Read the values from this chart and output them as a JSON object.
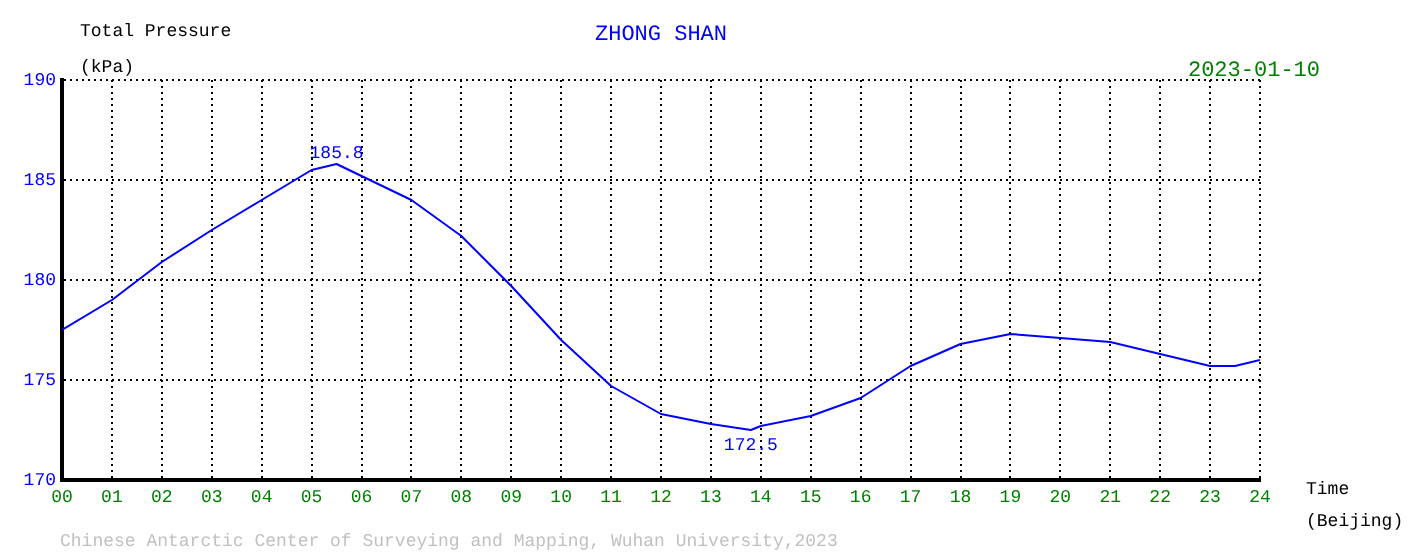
{
  "chart_data": {
    "type": "line",
    "title": "ZHONG SHAN",
    "subtitle": "2023-01-10",
    "ylabel": "Total Pressure (kPa)",
    "xlabel": "Time (Beijing)",
    "x": [
      0,
      1,
      2,
      3,
      4,
      5,
      5.5,
      6,
      7,
      8,
      9,
      10,
      11,
      12,
      13,
      13.8,
      14,
      15,
      16,
      17,
      18,
      19,
      20,
      21,
      22,
      23,
      23.5,
      24
    ],
    "series": [
      {
        "color": "#0000ff",
        "values": [
          177.5,
          179.0,
          180.9,
          182.5,
          184.0,
          185.5,
          185.8,
          185.2,
          184.0,
          182.2,
          179.7,
          177.0,
          174.7,
          173.3,
          172.8,
          172.5,
          172.7,
          173.2,
          174.1,
          175.7,
          176.8,
          177.3,
          177.1,
          176.9,
          176.3,
          175.7,
          175.7,
          176.0
        ]
      }
    ],
    "xlim": [
      0,
      24
    ],
    "ylim": [
      170,
      190
    ],
    "xticks": [
      {
        "value": 0,
        "label": "00"
      },
      {
        "value": 1,
        "label": "01"
      },
      {
        "value": 2,
        "label": "02"
      },
      {
        "value": 3,
        "label": "03"
      },
      {
        "value": 4,
        "label": "04"
      },
      {
        "value": 5,
        "label": "05"
      },
      {
        "value": 6,
        "label": "06"
      },
      {
        "value": 7,
        "label": "07"
      },
      {
        "value": 8,
        "label": "08"
      },
      {
        "value": 9,
        "label": "09"
      },
      {
        "value": 10,
        "label": "10"
      },
      {
        "value": 11,
        "label": "11"
      },
      {
        "value": 12,
        "label": "12"
      },
      {
        "value": 13,
        "label": "13"
      },
      {
        "value": 14,
        "label": "14"
      },
      {
        "value": 15,
        "label": "15"
      },
      {
        "value": 16,
        "label": "16"
      },
      {
        "value": 17,
        "label": "17"
      },
      {
        "value": 18,
        "label": "18"
      },
      {
        "value": 19,
        "label": "19"
      },
      {
        "value": 20,
        "label": "20"
      },
      {
        "value": 21,
        "label": "21"
      },
      {
        "value": 22,
        "label": "22"
      },
      {
        "value": 23,
        "label": "23"
      },
      {
        "value": 24,
        "label": "24"
      }
    ],
    "yticks": [
      170,
      175,
      180,
      185,
      190
    ],
    "grid": true,
    "legend": false,
    "marker": "none",
    "line_style": "solid",
    "annotations": [
      {
        "text": "185.8",
        "x": 5.5,
        "y": 185.8
      },
      {
        "text": "172.5",
        "x": 13.8,
        "y": 172.5
      },
      "Chinese Antarctic Center of Surveying and Mapping, Wuhan University,2023"
    ]
  }
}
